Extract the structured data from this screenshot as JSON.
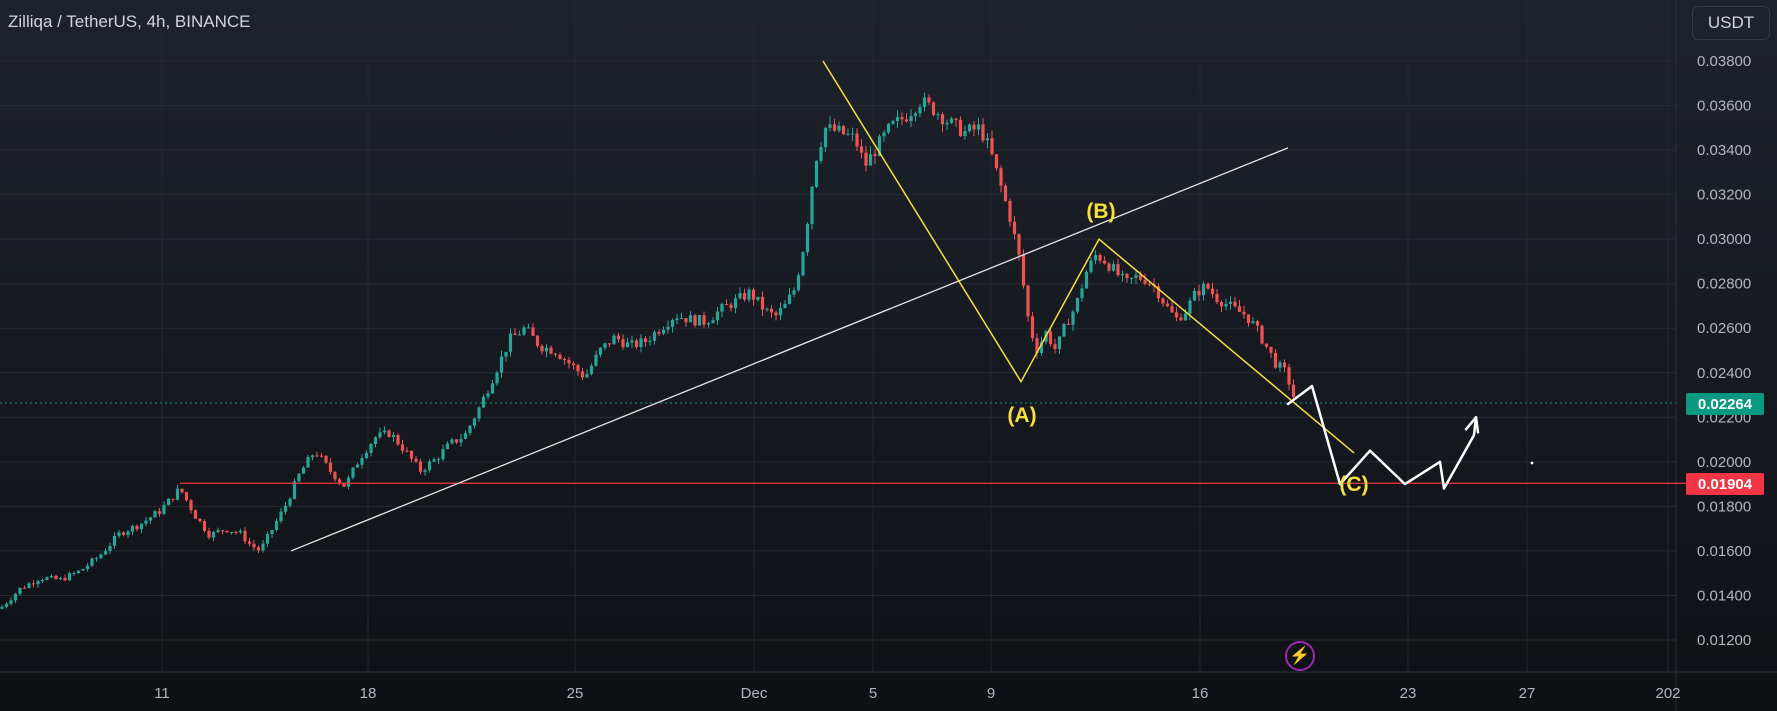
{
  "header": {
    "title": "Zilliqa / TetherUS, 4h, BINANCE",
    "currency": "USDT"
  },
  "colors": {
    "bull": "#26a69a",
    "bear": "#ef5350",
    "wave": "#f5e03b",
    "trend": "#e6e6e6",
    "support": "#f23645",
    "last_price": "#089981"
  },
  "icons": {
    "alert": "lightning-icon"
  },
  "badges": {
    "last_price": "0.02264",
    "support_price": "0.01904"
  },
  "chart_data": {
    "type": "candlestick",
    "title": "Zilliqa / TetherUS, 4h, BINANCE",
    "ylim": [
      0.0112,
      0.0398
    ],
    "y_ticks": [
      "0.03800",
      "0.03600",
      "0.03400",
      "0.03200",
      "0.03000",
      "0.02800",
      "0.02600",
      "0.02400",
      "0.02200",
      "0.02000",
      "0.01800",
      "0.01600",
      "0.01400",
      "0.01200"
    ],
    "x_ticks": [
      "11",
      "18",
      "25",
      "Dec",
      "5",
      "9",
      "16",
      "23",
      "27",
      "202"
    ],
    "grid": true,
    "last_price": 0.02264,
    "support_level": 0.01904,
    "wave_labels": [
      "(A)",
      "(B)",
      "(C)"
    ],
    "price_path": [
      [
        0.0134,
        0
      ],
      [
        0.0143,
        20
      ],
      [
        0.0148,
        40
      ],
      [
        0.0147,
        60
      ],
      [
        0.0151,
        80
      ],
      [
        0.0158,
        100
      ],
      [
        0.0168,
        120
      ],
      [
        0.0172,
        140
      ],
      [
        0.0178,
        160
      ],
      [
        0.0188,
        180
      ],
      [
        0.0176,
        195
      ],
      [
        0.0167,
        210
      ],
      [
        0.017,
        225
      ],
      [
        0.0168,
        240
      ],
      [
        0.0163,
        250
      ],
      [
        0.016,
        260
      ],
      [
        0.0168,
        270
      ],
      [
        0.018,
        285
      ],
      [
        0.0195,
        300
      ],
      [
        0.0205,
        315
      ],
      [
        0.0196,
        330
      ],
      [
        0.0189,
        345
      ],
      [
        0.0202,
        360
      ],
      [
        0.0211,
        375
      ],
      [
        0.0213,
        390
      ],
      [
        0.0205,
        405
      ],
      [
        0.0196,
        420
      ],
      [
        0.0201,
        435
      ],
      [
        0.0208,
        450
      ],
      [
        0.0212,
        465
      ],
      [
        0.0225,
        480
      ],
      [
        0.024,
        495
      ],
      [
        0.0255,
        510
      ],
      [
        0.026,
        525
      ],
      [
        0.0252,
        540
      ],
      [
        0.025,
        555
      ],
      [
        0.0244,
        570
      ],
      [
        0.0238,
        585
      ],
      [
        0.025,
        600
      ],
      [
        0.0256,
        615
      ],
      [
        0.0252,
        630
      ],
      [
        0.0254,
        645
      ],
      [
        0.026,
        660
      ],
      [
        0.0266,
        675
      ],
      [
        0.0264,
        690
      ],
      [
        0.0263,
        705
      ],
      [
        0.0268,
        720
      ],
      [
        0.0272,
        735
      ],
      [
        0.0276,
        750
      ],
      [
        0.0268,
        765
      ],
      [
        0.0265,
        775
      ],
      [
        0.027,
        785
      ],
      [
        0.0278,
        795
      ],
      [
        0.03,
        805
      ],
      [
        0.0335,
        815
      ],
      [
        0.035,
        825
      ],
      [
        0.0348,
        840
      ],
      [
        0.0345,
        855
      ],
      [
        0.0333,
        865
      ],
      [
        0.034,
        875
      ],
      [
        0.035,
        890
      ],
      [
        0.0355,
        905
      ],
      [
        0.0362,
        920
      ],
      [
        0.0358,
        935
      ],
      [
        0.0352,
        950
      ],
      [
        0.0348,
        965
      ],
      [
        0.035,
        980
      ],
      [
        0.034,
        990
      ],
      [
        0.0325,
        1000
      ],
      [
        0.031,
        1010
      ],
      [
        0.029,
        1020
      ],
      [
        0.0265,
        1028
      ],
      [
        0.025,
        1036
      ],
      [
        0.0258,
        1046
      ],
      [
        0.025,
        1056
      ],
      [
        0.0262,
        1066
      ],
      [
        0.027,
        1076
      ],
      [
        0.0285,
        1086
      ],
      [
        0.0293,
        1096
      ],
      [
        0.029,
        1106
      ],
      [
        0.0285,
        1116
      ],
      [
        0.028,
        1126
      ],
      [
        0.0283,
        1136
      ],
      [
        0.0282,
        1146
      ],
      [
        0.0278,
        1156
      ],
      [
        0.027,
        1166
      ],
      [
        0.0264,
        1176
      ],
      [
        0.0268,
        1186
      ],
      [
        0.0276,
        1196
      ],
      [
        0.0279,
        1206
      ],
      [
        0.0274,
        1216
      ],
      [
        0.0271,
        1226
      ],
      [
        0.0268,
        1236
      ],
      [
        0.0266,
        1246
      ],
      [
        0.026,
        1256
      ],
      [
        0.0252,
        1266
      ],
      [
        0.0244,
        1276
      ],
      [
        0.024,
        1286
      ],
      [
        0.0226,
        1296
      ]
    ],
    "drawings": {
      "trend_line": [
        [
          0.016,
          291
        ],
        [
          0.0341,
          1288
        ]
      ],
      "support_line": [
        [
          0.01904,
          180
        ],
        [
          0.01904,
          1686
        ]
      ],
      "wave_path": [
        [
          0.038,
          823
        ],
        [
          0.0236,
          1021
        ],
        [
          0.03,
          1099
        ],
        [
          0.0204,
          1354
        ]
      ],
      "projection": [
        [
          0.0226,
          1288
        ],
        [
          0.0234,
          1312
        ],
        [
          0.019,
          1340
        ],
        [
          0.0205,
          1370
        ],
        [
          0.019,
          1405
        ],
        [
          0.02,
          1440
        ],
        [
          0.0188,
          1444
        ],
        [
          0.0212,
          1474
        ],
        [
          0.022,
          1476
        ]
      ]
    }
  }
}
